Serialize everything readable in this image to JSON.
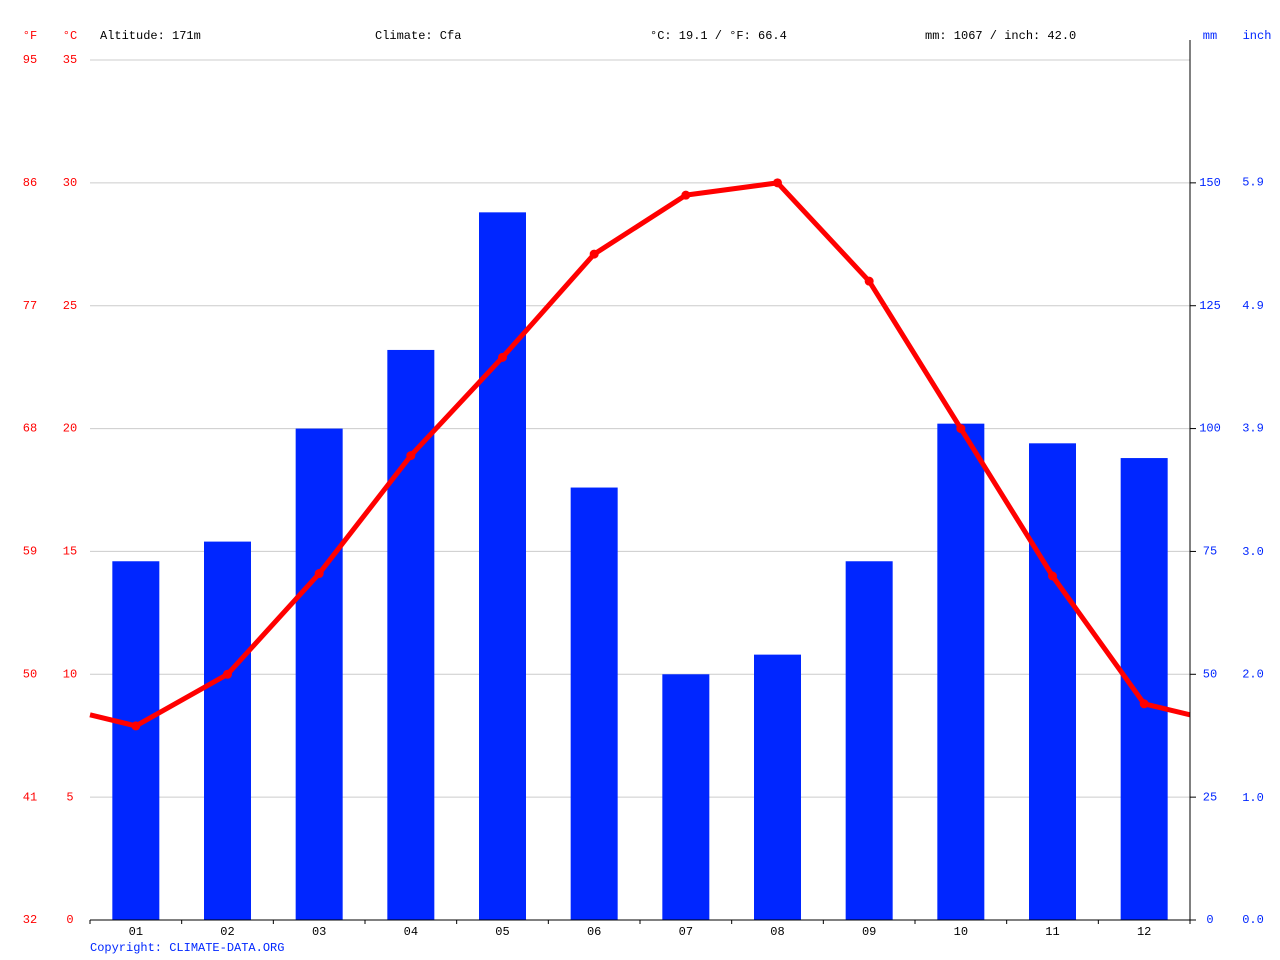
{
  "chart_data": {
    "type": "climate",
    "header": {
      "f_unit": "°F",
      "c_unit": "°C",
      "altitude": "Altitude: 171m",
      "climate": "Climate: Cfa",
      "temp_mean": "°C: 19.1 / °F: 66.4",
      "precip_total": "mm: 1067 / inch: 42.0",
      "mm_unit": "mm",
      "inch_unit": "inch"
    },
    "copyright": "Copyright: CLIMATE-DATA.ORG",
    "categories": [
      "01",
      "02",
      "03",
      "04",
      "05",
      "06",
      "07",
      "08",
      "09",
      "10",
      "11",
      "12"
    ],
    "series": [
      {
        "name": "Precipitation",
        "kind": "bar",
        "axis": "y2",
        "color": "#0026ff",
        "values": [
          73,
          77,
          100,
          116,
          144,
          88,
          50,
          54,
          73,
          101,
          97,
          94
        ]
      },
      {
        "name": "Temperature",
        "kind": "line",
        "color": "#ff0000",
        "values": [
          7.9,
          10.0,
          14.1,
          18.9,
          22.9,
          27.1,
          29.5,
          30.0,
          26.0,
          20.0,
          14.0,
          8.8
        ]
      }
    ],
    "ylim": [
      0,
      35
    ],
    "yticks": [
      0,
      5,
      10,
      15,
      20,
      25,
      30,
      35
    ],
    "yflim": [
      32,
      95
    ],
    "yfticks": [
      32,
      41,
      50,
      59,
      68,
      77,
      86,
      95
    ],
    "y2lim": [
      0,
      175
    ],
    "y2ticks": [
      0,
      25,
      50,
      75,
      100,
      125,
      150
    ],
    "yinchlim": [
      0,
      6.89
    ],
    "yinchticks": [
      {
        "value": 0,
        "label": "0.0"
      },
      {
        "value": 0.98,
        "label": "1.0"
      },
      {
        "value": 1.97,
        "label": "2.0"
      },
      {
        "value": 2.95,
        "label": "3.0"
      },
      {
        "value": 3.94,
        "label": "3.9"
      },
      {
        "value": 4.92,
        "label": "4.9"
      },
      {
        "value": 5.91,
        "label": "5.9"
      }
    ],
    "grid": true
  }
}
